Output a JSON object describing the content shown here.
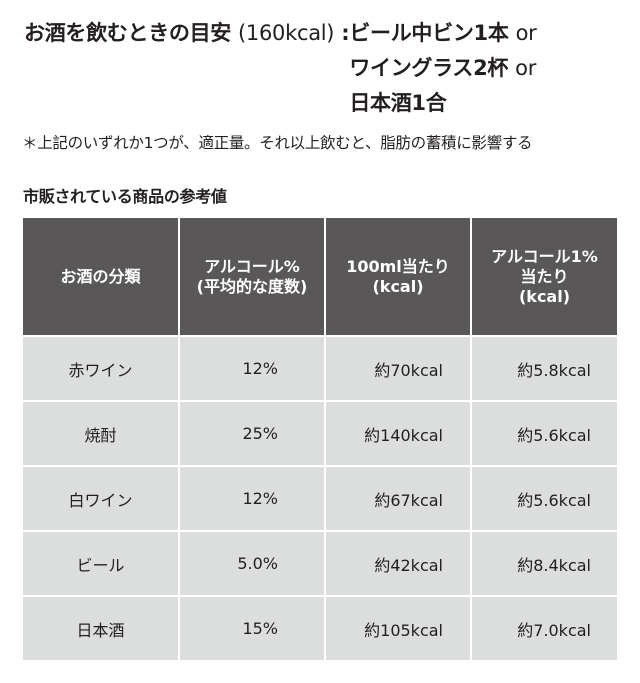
{
  "guide": {
    "label": "お酒を飲むときの目安",
    "kcal": "(160kcal)",
    "separator": ":",
    "lines": [
      {
        "text": "ビール中ビン1本",
        "or": "or"
      },
      {
        "text": "ワイングラス2杯",
        "or": "or"
      },
      {
        "text": "日本酒1合",
        "or": ""
      }
    ]
  },
  "note": "＊上記のいずれか1つが、適正量。それ以上飲むと、脂肪の蓄積に影響する",
  "table_caption": "市販されている商品の参考値",
  "table": {
    "headers": [
      [
        "お酒の分類"
      ],
      [
        "アルコール%",
        "(平均的な度数)"
      ],
      [
        "100ml当たり",
        "(kcal)"
      ],
      [
        "アルコール1%",
        "当たり",
        "(kcal)"
      ]
    ],
    "rows": [
      [
        "赤ワイン",
        "12%",
        "約70kcal",
        "約5.8kcal"
      ],
      [
        "焼酎",
        "25%",
        "約140kcal",
        "約5.6kcal"
      ],
      [
        "白ワイン",
        "12%",
        "約67kcal",
        "約5.6kcal"
      ],
      [
        "ビール",
        "5.0%",
        "約42kcal",
        "約8.4kcal"
      ],
      [
        "日本酒",
        "15%",
        "約105kcal",
        "約7.0kcal"
      ]
    ]
  },
  "colors": {
    "header_bg": "#595757",
    "cell_bg": "#dcdddd",
    "text": "#231f20"
  }
}
